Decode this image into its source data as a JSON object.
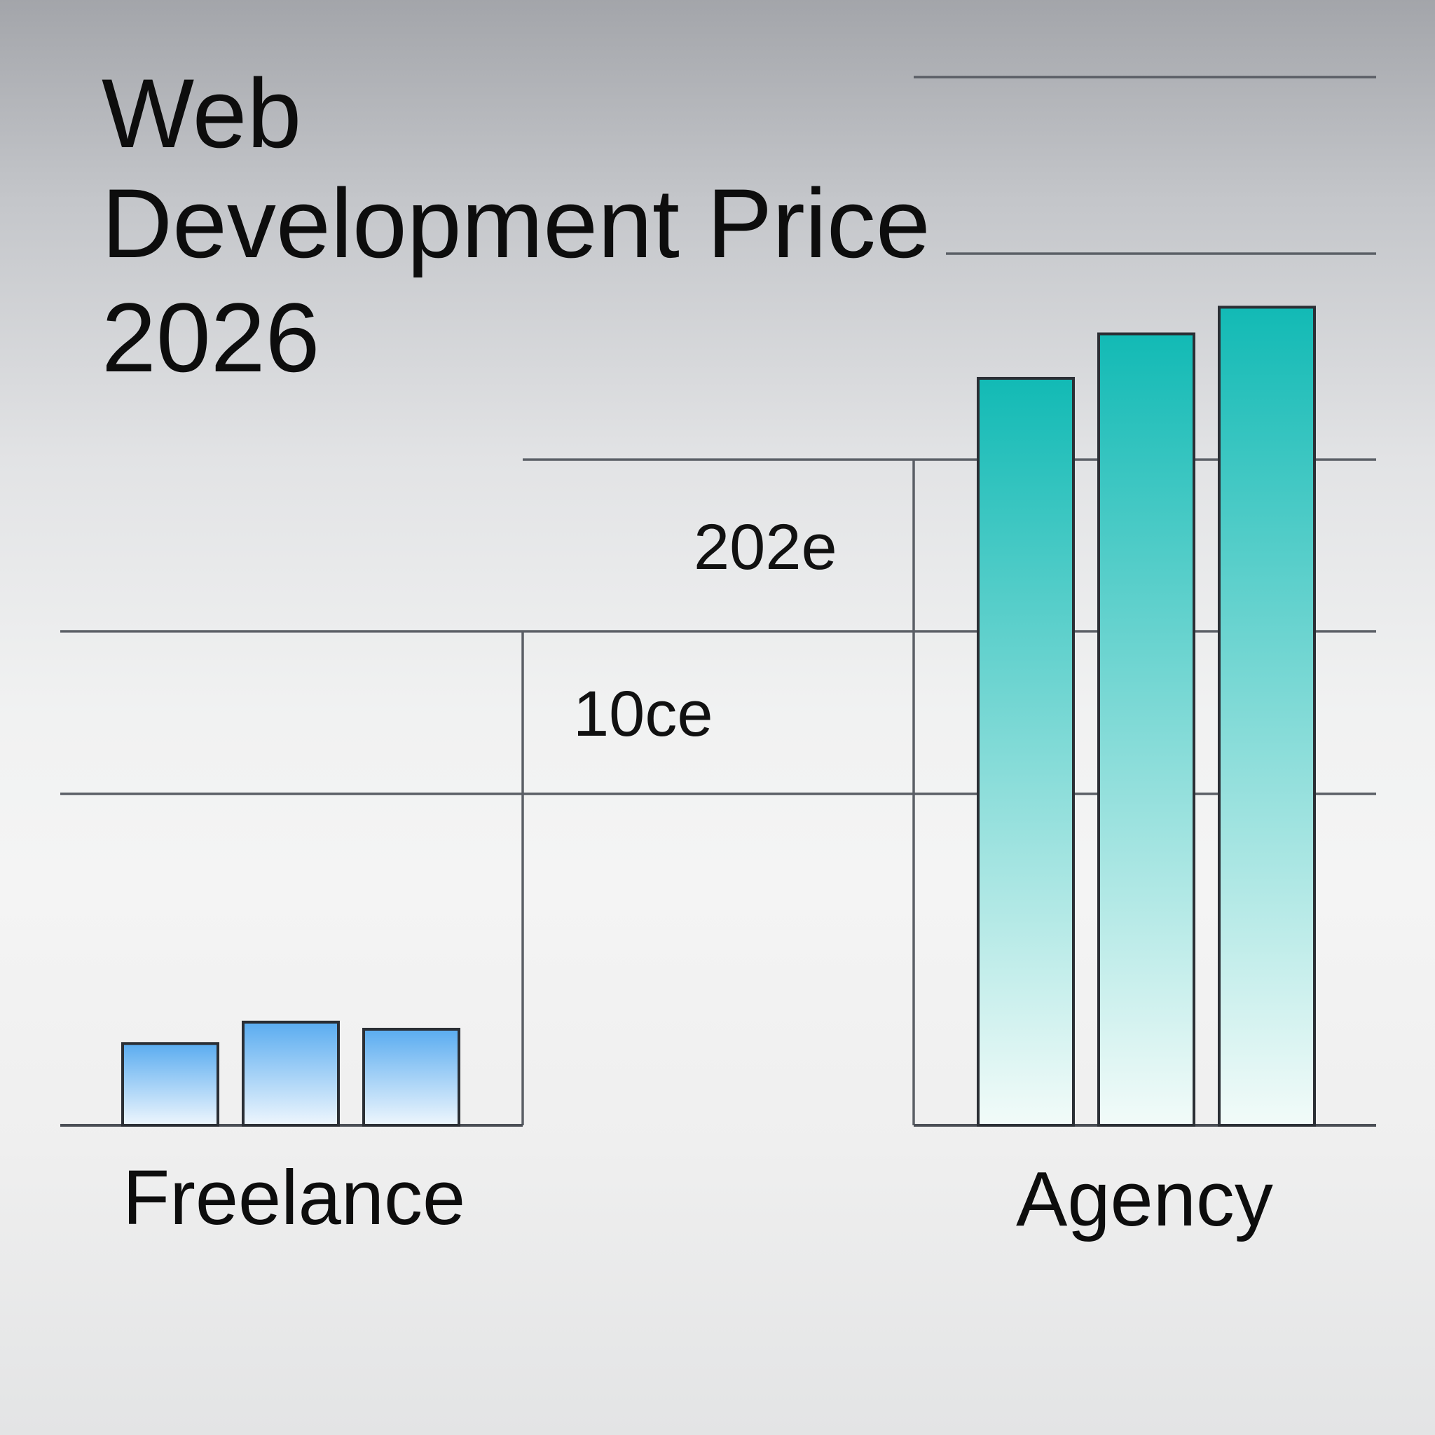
{
  "chart_data": {
    "type": "bar",
    "title_lines": [
      "Web",
      "Development Price",
      "2026"
    ],
    "categories": [
      "Freelance",
      "Agency"
    ],
    "tick_labels": [
      "10ce",
      "202e"
    ],
    "tick_values": [
      100,
      200
    ],
    "ylim": [
      0,
      550
    ],
    "grid": true,
    "legend": "none",
    "series": [
      {
        "values": [
          46,
          420
        ]
      },
      {
        "values": [
          58,
          445
        ]
      },
      {
        "values": [
          54,
          460
        ]
      }
    ],
    "colors": {
      "freelance_top": "#5aacf0",
      "freelance_bottom": "#eef6fd",
      "agency_top": "#12bab5",
      "agency_bottom": "#f2fbf9"
    }
  }
}
